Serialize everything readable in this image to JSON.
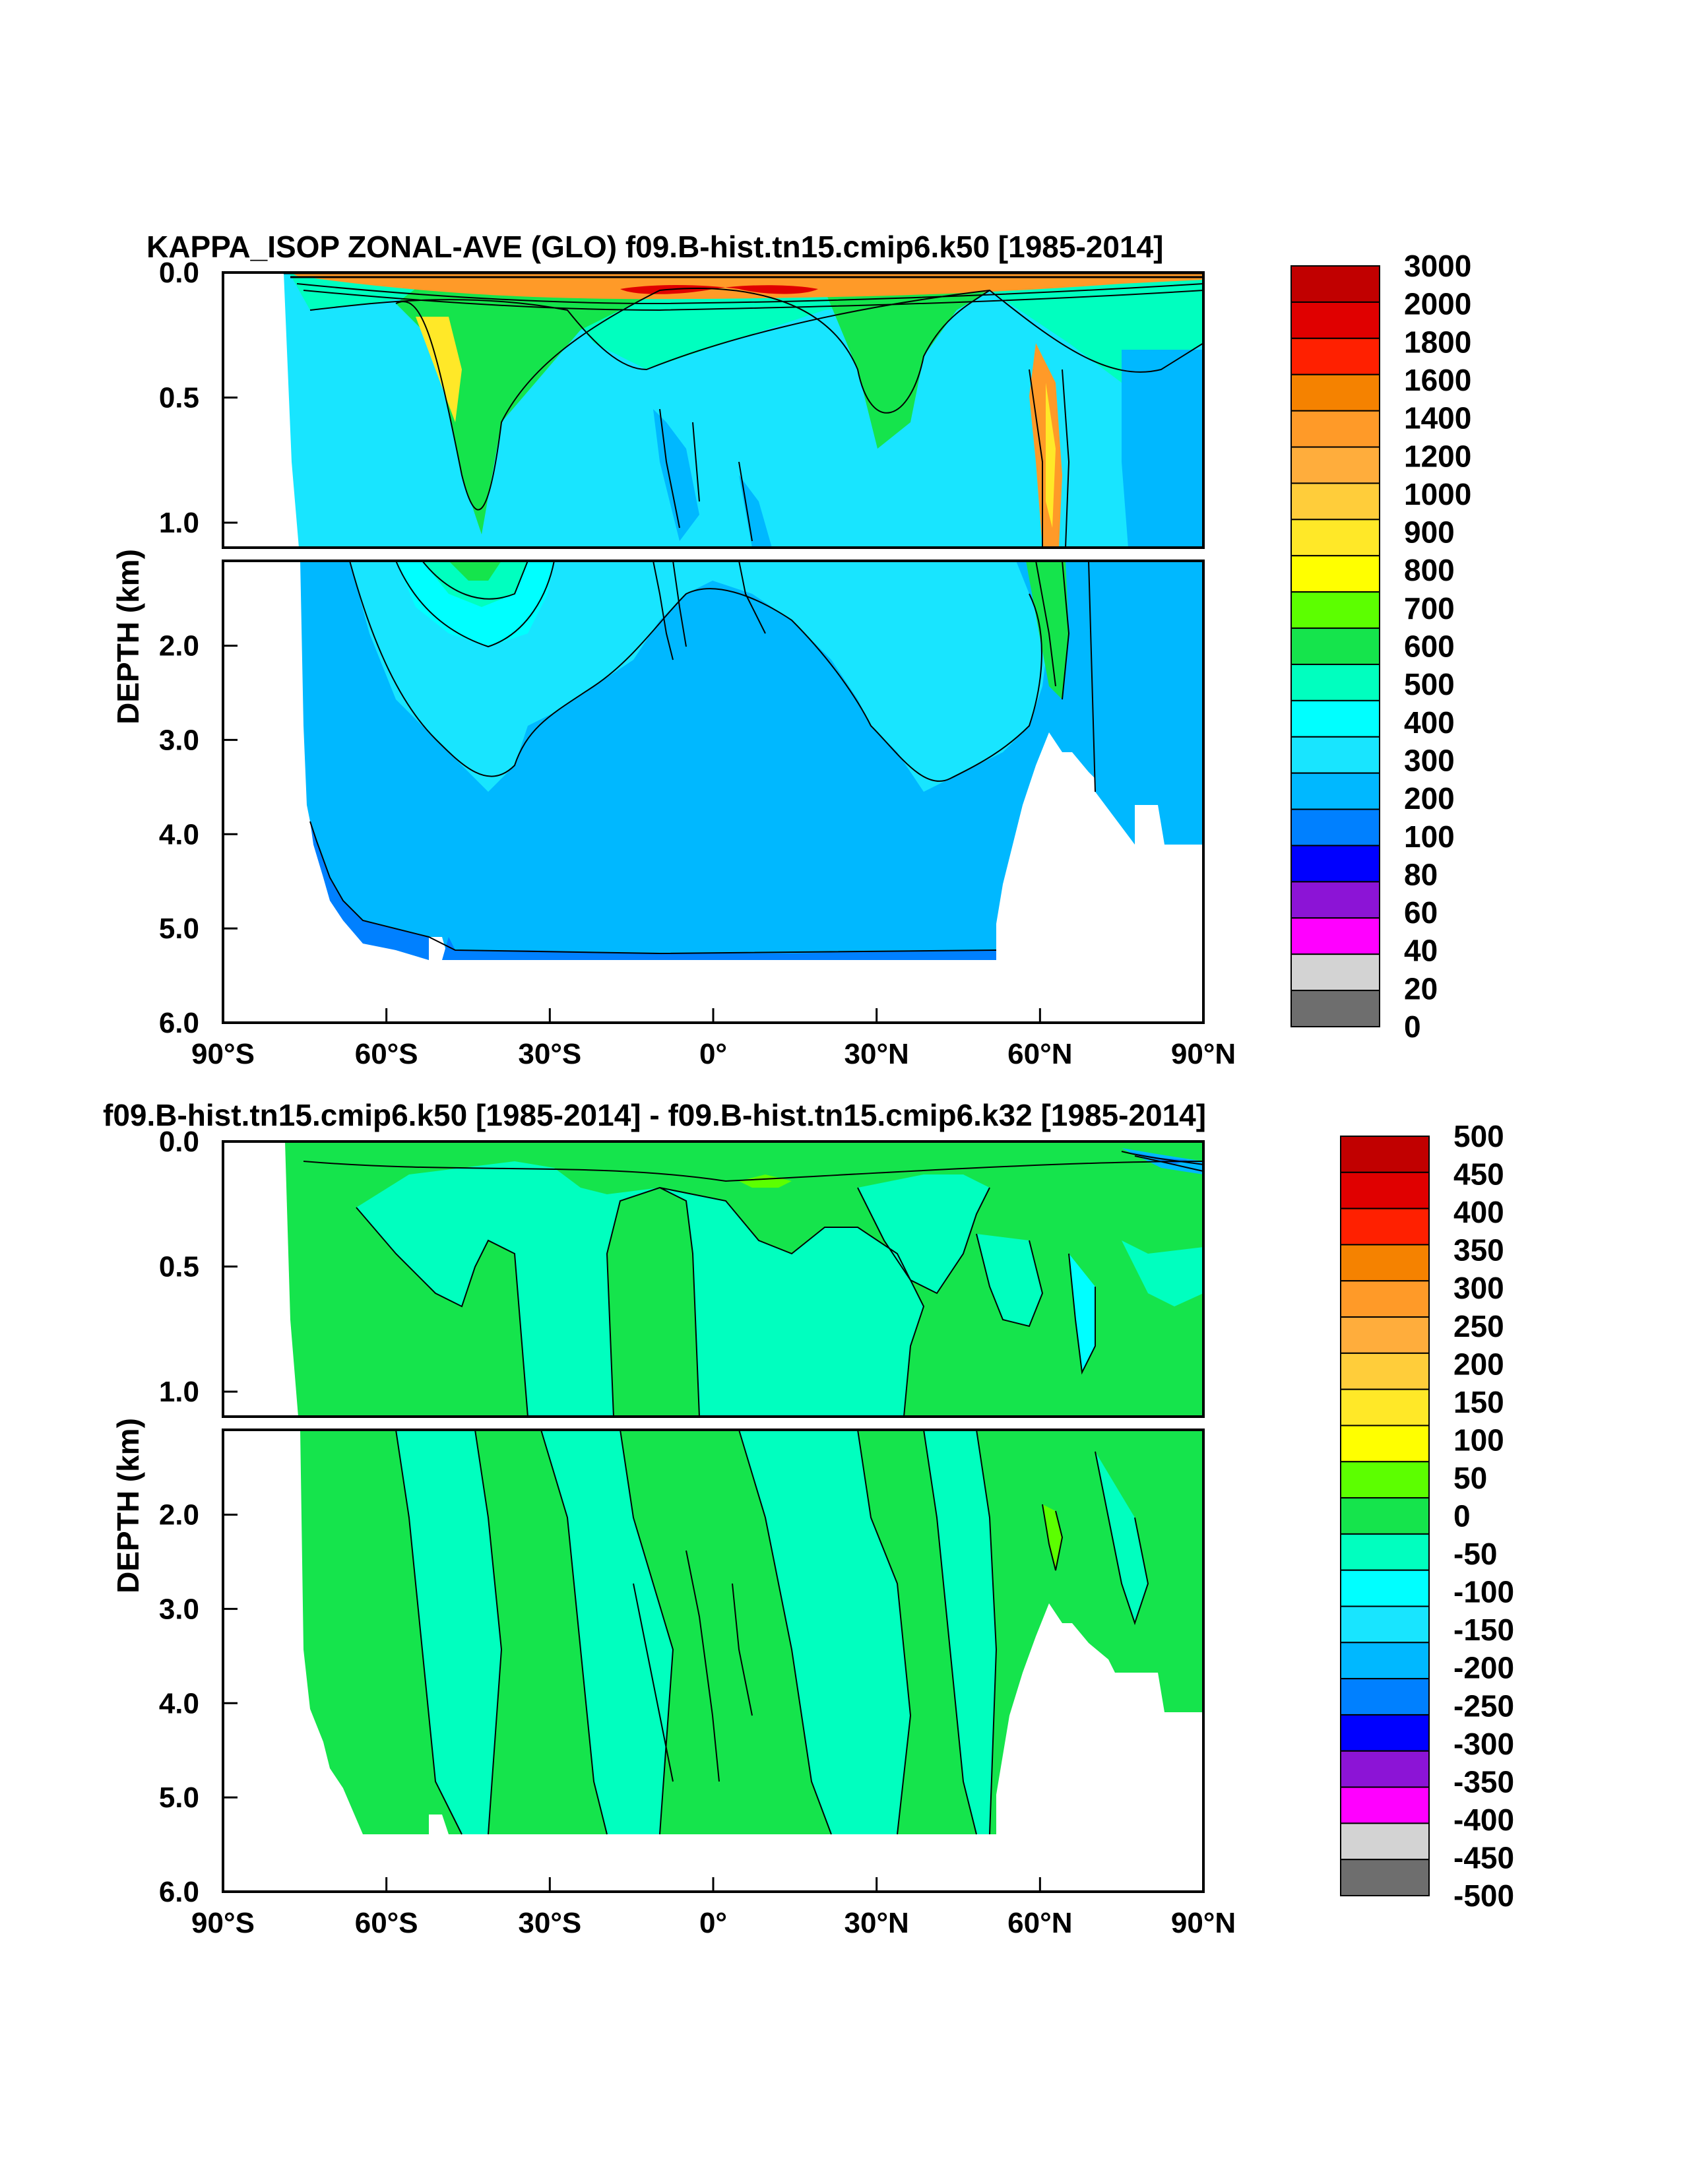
{
  "chart_data": [
    {
      "type": "heatmap",
      "title": "KAPPA_ISOP ZONAL-AVE (GLO) f09.B-hist.tn15.cmip6.k50 [1985-2014]",
      "xlabel": "",
      "ylabel": "DEPTH (km)",
      "xlim": [
        -90,
        90
      ],
      "ylim": [
        0,
        6
      ],
      "x_ticks": [
        "90°S",
        "60°S",
        "30°S",
        "0°",
        "30°N",
        "60°N",
        "90°N"
      ],
      "y_ticks": [
        "0.0",
        "0.5",
        "1.0",
        "2.0",
        "3.0",
        "4.0",
        "5.0",
        "6.0"
      ],
      "colorbar_labels": [
        "3000",
        "2000",
        "1800",
        "1600",
        "1400",
        "1200",
        "1000",
        "900",
        "800",
        "700",
        "600",
        "500",
        "400",
        "300",
        "200",
        "100",
        "80",
        "60",
        "40",
        "20",
        "0"
      ],
      "colorbar_colors": [
        "#c10000",
        "#e00000",
        "#ff2000",
        "#f58200",
        "#ff9a28",
        "#ffad3c",
        "#ffcd3a",
        "#ffe828",
        "#ffff00",
        "#5cff00",
        "#15e44c",
        "#00ffbf",
        "#00ffff",
        "#18e5ff",
        "#00b8ff",
        "#0080ff",
        "#0000ff",
        "#8c14d6",
        "#ff00ff",
        "#d3d3d3",
        "#6e6e6e"
      ]
    },
    {
      "type": "heatmap",
      "title": "f09.B-hist.tn15.cmip6.k50 [1985-2014] - f09.B-hist.tn15.cmip6.k32 [1985-2014]",
      "xlabel": "",
      "ylabel": "DEPTH (km)",
      "xlim": [
        -90,
        90
      ],
      "ylim": [
        0,
        6
      ],
      "x_ticks": [
        "90°S",
        "60°S",
        "30°S",
        "0°",
        "30°N",
        "60°N",
        "90°N"
      ],
      "y_ticks": [
        "0.0",
        "0.5",
        "1.0",
        "2.0",
        "3.0",
        "4.0",
        "5.0",
        "6.0"
      ],
      "colorbar_labels": [
        "500",
        "450",
        "400",
        "350",
        "300",
        "250",
        "200",
        "150",
        "100",
        "50",
        "0",
        "-50",
        "-100",
        "-150",
        "-200",
        "-250",
        "-300",
        "-350",
        "-400",
        "-450",
        "-500"
      ],
      "colorbar_colors": [
        "#c10000",
        "#e00000",
        "#ff2000",
        "#f58200",
        "#ff9a28",
        "#ffad3c",
        "#ffcd3a",
        "#ffe828",
        "#ffff00",
        "#5cff00",
        "#15e44c",
        "#00ffbf",
        "#00ffff",
        "#18e5ff",
        "#00b8ff",
        "#0080ff",
        "#0000ff",
        "#8c14d6",
        "#ff00ff",
        "#d3d3d3",
        "#6e6e6e"
      ]
    }
  ]
}
